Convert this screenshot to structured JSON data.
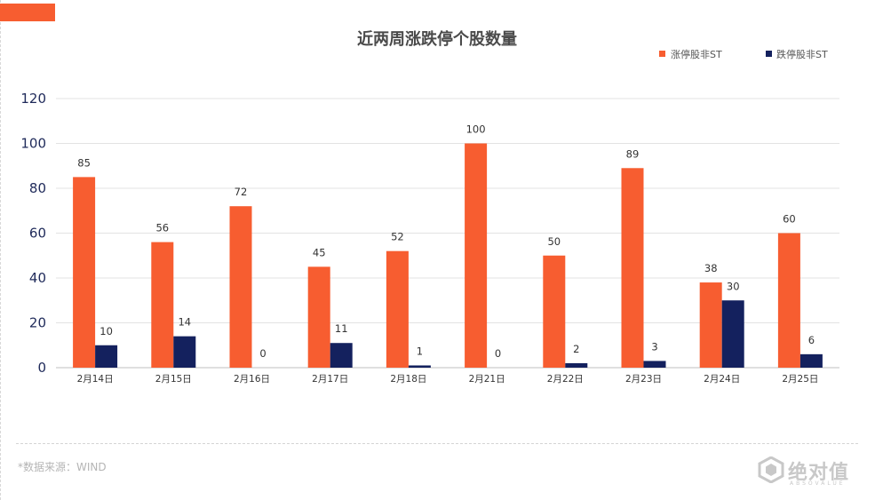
{
  "chart_data": {
    "type": "bar",
    "title": "近两周涨跌停个股数量",
    "categories": [
      "2月14日",
      "2月15日",
      "2月16日",
      "2月17日",
      "2月18日",
      "2月21日",
      "2月22日",
      "2月23日",
      "2月24日",
      "2月25日"
    ],
    "series": [
      {
        "name": "涨停股非ST",
        "color": "#f75d30",
        "values": [
          85,
          56,
          72,
          45,
          52,
          100,
          50,
          89,
          38,
          60
        ]
      },
      {
        "name": "跌停股非ST",
        "color": "#14215e",
        "values": [
          10,
          14,
          0,
          11,
          1,
          0,
          2,
          3,
          30,
          6
        ]
      }
    ],
    "ylim": [
      0,
      120
    ],
    "yticks": [
      0,
      20,
      40,
      60,
      80,
      100,
      120
    ],
    "grid": true,
    "legend": "top-right",
    "data_labels": true
  },
  "footer": {
    "source": "*数据来源：WIND",
    "logo_text": "绝对值",
    "logo_sub": "ABSOVALUE"
  },
  "colors": {
    "accent": "#f75d30",
    "navy": "#14215e"
  }
}
